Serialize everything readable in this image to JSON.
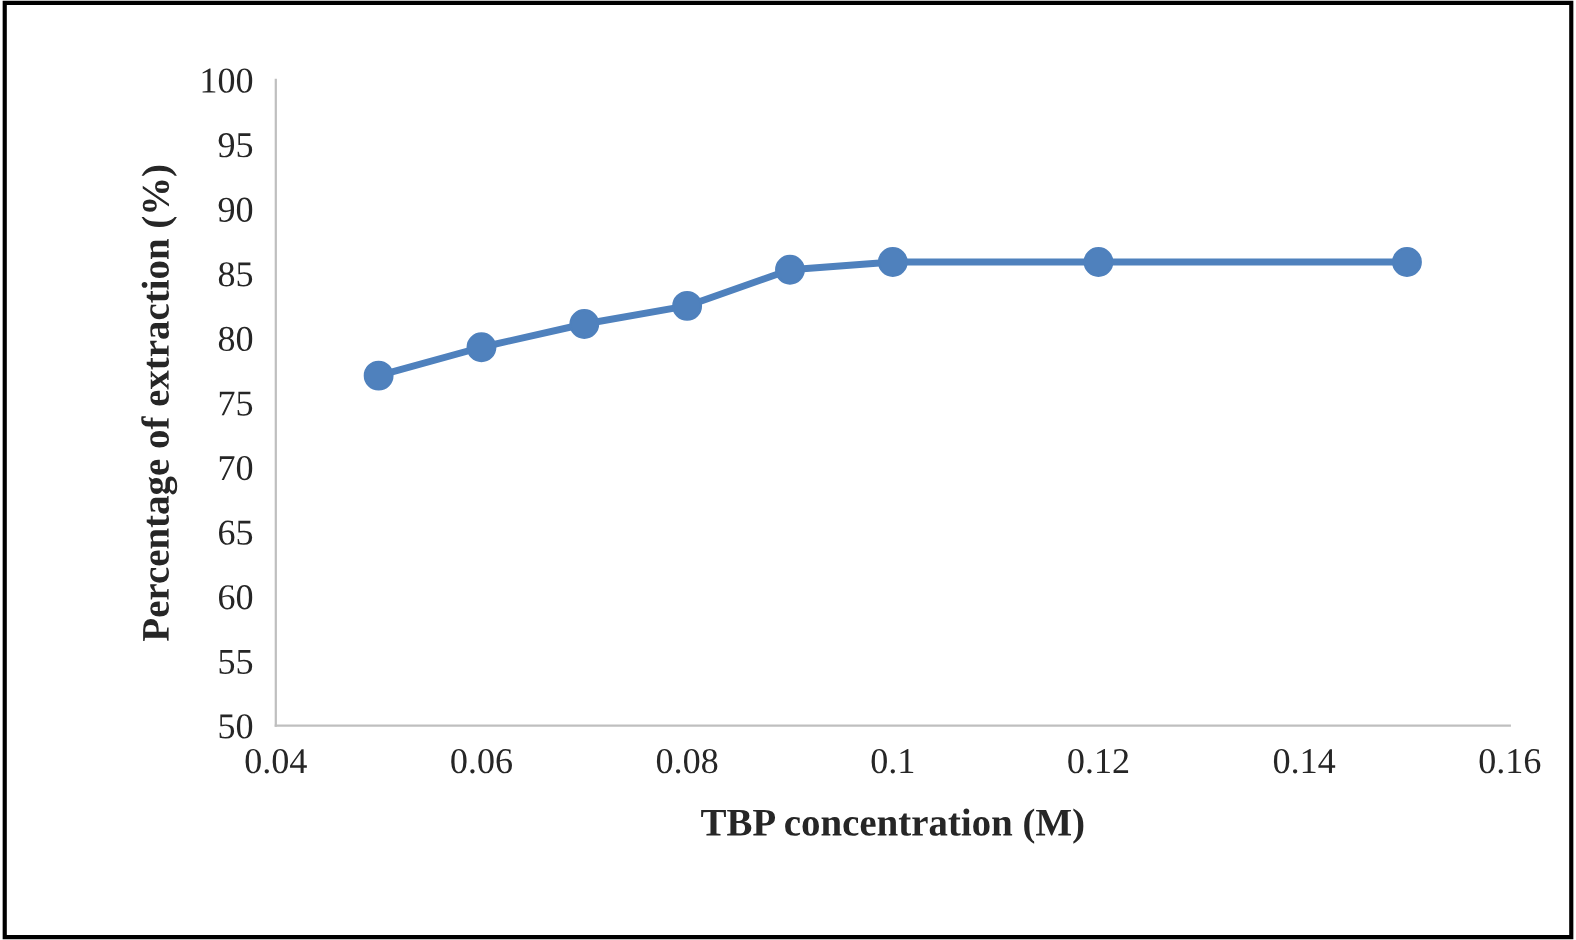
{
  "chart_data": {
    "type": "line",
    "xlabel": "TBP concentration (M)",
    "ylabel": "Percentage of extraction (%)",
    "x": [
      0.05,
      0.06,
      0.07,
      0.08,
      0.09,
      0.1,
      0.12,
      0.15
    ],
    "series": [
      {
        "color": "#4f81bd",
        "values": [
          77.1,
          79.3,
          81.1,
          82.5,
          85.3,
          85.9,
          85.9,
          85.9
        ]
      }
    ],
    "xlim": [
      0.04,
      0.16
    ],
    "xticks": [
      0.04,
      0.06,
      0.08,
      0.1,
      0.12,
      0.14,
      0.16
    ],
    "ylim": [
      50,
      100
    ],
    "yticks": [
      50,
      55,
      60,
      65,
      70,
      75,
      80,
      85,
      90,
      95,
      100
    ],
    "marker": "circle",
    "line_style": "solid",
    "grid": false
  }
}
